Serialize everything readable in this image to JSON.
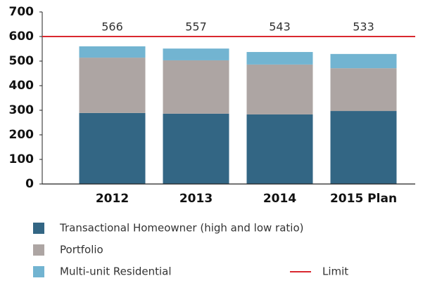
{
  "chart_data": {
    "type": "stacked_bar",
    "categories": [
      "2012",
      "2013",
      "2014",
      "2015 Plan"
    ],
    "series": [
      {
        "name": "Transactional Homeowner (high and low ratio)",
        "color": "#336684",
        "values": [
          289,
          286,
          283,
          297
        ]
      },
      {
        "name": "Portfolio",
        "color": "#ada5a3",
        "values": [
          225,
          217,
          203,
          174
        ]
      },
      {
        "name": "Multi-unit Residential",
        "color": "#72b4d1",
        "values": [
          46,
          48,
          51,
          58
        ]
      }
    ],
    "totals": [
      566,
      557,
      543,
      533
    ],
    "limit": {
      "name": "Limit",
      "value": 600,
      "color": "#d9282f"
    },
    "ylim": [
      0,
      700
    ],
    "yticks": [
      0,
      100,
      200,
      300,
      400,
      500,
      600,
      700
    ]
  }
}
